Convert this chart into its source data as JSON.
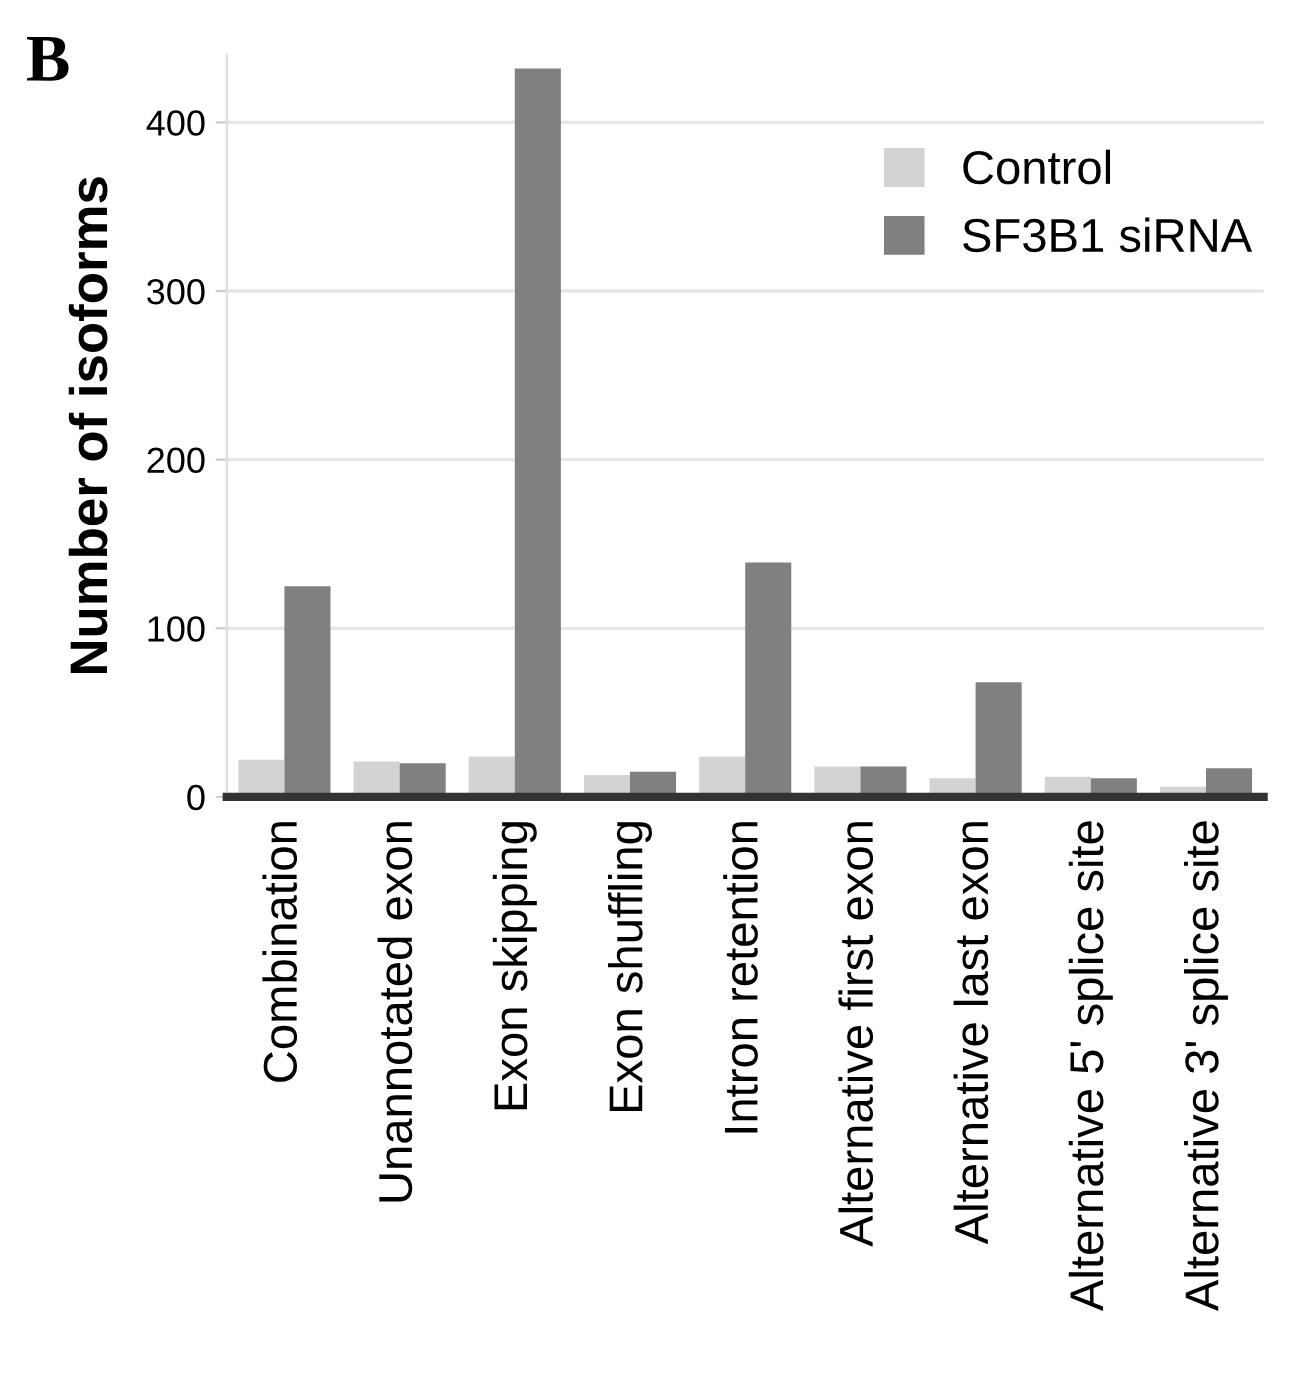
{
  "chart_data": {
    "type": "bar",
    "title": "B",
    "ylabel": "Number of isoforms",
    "categories": [
      "Combination",
      "Unannotated exon",
      "Exon skipping",
      "Exon shuffling",
      "Intron retention",
      "Alternative first exon",
      "Alternative last exon",
      "Alternative 5' splice site",
      "Alternative 3' splice site"
    ],
    "series": [
      {
        "name": "Control",
        "color": "#d3d3d3",
        "values": [
          22,
          21,
          24,
          13,
          24,
          18,
          11,
          12,
          6
        ]
      },
      {
        "name": "SF3B1 siRNA",
        "color": "#808080",
        "values": [
          125,
          20,
          432,
          15,
          139,
          18,
          68,
          11,
          17
        ]
      }
    ],
    "ylim": [
      0,
      440
    ],
    "yticks": [
      0,
      100,
      200,
      300,
      400
    ],
    "grid": "y",
    "legend": "top right"
  }
}
